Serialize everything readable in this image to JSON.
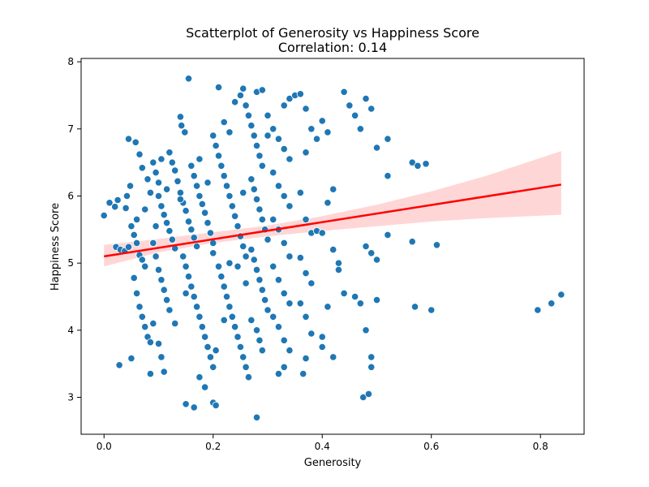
{
  "chart_data": {
    "type": "scatter",
    "title": "Scatterplot of Generosity vs Happiness Score",
    "subtitle": "Correlation: 0.14",
    "xlabel": "Generosity",
    "ylabel": "Happiness Score",
    "xlim": [
      -0.042,
      0.88
    ],
    "ylim": [
      2.45,
      8.05
    ],
    "xticks": [
      {
        "value": 0.0,
        "label": "0.0"
      },
      {
        "value": 0.2,
        "label": "0.2"
      },
      {
        "value": 0.4,
        "label": "0.4"
      },
      {
        "value": 0.6,
        "label": "0.6"
      },
      {
        "value": 0.8,
        "label": "0.8"
      }
    ],
    "yticks": [
      {
        "value": 3,
        "label": "3"
      },
      {
        "value": 4,
        "label": "4"
      },
      {
        "value": 5,
        "label": "5"
      },
      {
        "value": 6,
        "label": "6"
      },
      {
        "value": 7,
        "label": "7"
      },
      {
        "value": 8,
        "label": "8"
      }
    ],
    "grid": false,
    "colors": {
      "points": "#1f77b4",
      "point_edge": "#ffffff",
      "regression": "#ff0000",
      "ci": "#ffcccc"
    },
    "regression": {
      "x": [
        0.0,
        0.838
      ],
      "y": [
        5.1,
        6.17
      ]
    },
    "ci_band": {
      "x": [
        0.0,
        0.1,
        0.2,
        0.3,
        0.4,
        0.5,
        0.6,
        0.7,
        0.838
      ],
      "lower": [
        4.95,
        5.16,
        5.3,
        5.4,
        5.48,
        5.55,
        5.62,
        5.67,
        5.72
      ],
      "upper": [
        5.27,
        5.36,
        5.46,
        5.56,
        5.7,
        5.87,
        6.07,
        6.3,
        6.67
      ]
    },
    "points": [
      [
        0.0,
        5.71
      ],
      [
        0.01,
        5.9
      ],
      [
        0.02,
        5.84
      ],
      [
        0.025,
        5.94
      ],
      [
        0.022,
        5.24
      ],
      [
        0.03,
        5.2
      ],
      [
        0.038,
        5.18
      ],
      [
        0.045,
        5.24
      ],
      [
        0.028,
        3.48
      ],
      [
        0.05,
        3.58
      ],
      [
        0.04,
        5.82
      ],
      [
        0.042,
        6.0
      ],
      [
        0.048,
        6.15
      ],
      [
        0.05,
        5.55
      ],
      [
        0.055,
        5.42
      ],
      [
        0.06,
        5.3
      ],
      [
        0.065,
        5.12
      ],
      [
        0.07,
        5.05
      ],
      [
        0.075,
        4.95
      ],
      [
        0.045,
        6.85
      ],
      [
        0.058,
        6.8
      ],
      [
        0.065,
        6.62
      ],
      [
        0.07,
        6.42
      ],
      [
        0.08,
        6.25
      ],
      [
        0.085,
        6.05
      ],
      [
        0.055,
        4.78
      ],
      [
        0.06,
        4.55
      ],
      [
        0.065,
        4.35
      ],
      [
        0.07,
        4.2
      ],
      [
        0.075,
        4.05
      ],
      [
        0.08,
        3.9
      ],
      [
        0.085,
        3.82
      ],
      [
        0.09,
        6.5
      ],
      [
        0.095,
        6.35
      ],
      [
        0.1,
        6.2
      ],
      [
        0.1,
        6.0
      ],
      [
        0.105,
        5.85
      ],
      [
        0.11,
        5.72
      ],
      [
        0.115,
        5.6
      ],
      [
        0.12,
        5.48
      ],
      [
        0.125,
        5.35
      ],
      [
        0.13,
        5.22
      ],
      [
        0.09,
        5.3
      ],
      [
        0.095,
        5.1
      ],
      [
        0.1,
        4.9
      ],
      [
        0.105,
        4.75
      ],
      [
        0.11,
        4.6
      ],
      [
        0.115,
        4.45
      ],
      [
        0.12,
        4.3
      ],
      [
        0.09,
        4.1
      ],
      [
        0.1,
        3.8
      ],
      [
        0.105,
        3.6
      ],
      [
        0.085,
        3.35
      ],
      [
        0.11,
        3.38
      ],
      [
        0.12,
        6.65
      ],
      [
        0.125,
        6.5
      ],
      [
        0.13,
        6.38
      ],
      [
        0.135,
        6.22
      ],
      [
        0.14,
        6.05
      ],
      [
        0.145,
        5.9
      ],
      [
        0.15,
        5.78
      ],
      [
        0.155,
        5.62
      ],
      [
        0.16,
        5.5
      ],
      [
        0.165,
        5.38
      ],
      [
        0.17,
        5.25
      ],
      [
        0.14,
        7.18
      ],
      [
        0.142,
        7.05
      ],
      [
        0.148,
        6.95
      ],
      [
        0.155,
        7.75
      ],
      [
        0.16,
        6.45
      ],
      [
        0.165,
        6.3
      ],
      [
        0.17,
        6.15
      ],
      [
        0.175,
        6.0
      ],
      [
        0.18,
        5.88
      ],
      [
        0.185,
        5.75
      ],
      [
        0.19,
        5.6
      ],
      [
        0.195,
        5.45
      ],
      [
        0.2,
        5.3
      ],
      [
        0.145,
        5.1
      ],
      [
        0.15,
        4.95
      ],
      [
        0.155,
        4.8
      ],
      [
        0.16,
        4.65
      ],
      [
        0.165,
        4.5
      ],
      [
        0.17,
        4.35
      ],
      [
        0.175,
        4.2
      ],
      [
        0.18,
        4.05
      ],
      [
        0.185,
        3.9
      ],
      [
        0.19,
        3.75
      ],
      [
        0.195,
        3.6
      ],
      [
        0.2,
        3.45
      ],
      [
        0.15,
        2.9
      ],
      [
        0.165,
        2.85
      ],
      [
        0.2,
        2.92
      ],
      [
        0.205,
        2.88
      ],
      [
        0.175,
        3.3
      ],
      [
        0.185,
        3.15
      ],
      [
        0.21,
        7.62
      ],
      [
        0.2,
        6.9
      ],
      [
        0.205,
        6.75
      ],
      [
        0.21,
        6.6
      ],
      [
        0.215,
        6.45
      ],
      [
        0.22,
        6.3
      ],
      [
        0.225,
        6.15
      ],
      [
        0.23,
        6.0
      ],
      [
        0.235,
        5.85
      ],
      [
        0.24,
        5.7
      ],
      [
        0.245,
        5.55
      ],
      [
        0.25,
        5.4
      ],
      [
        0.255,
        5.25
      ],
      [
        0.26,
        5.1
      ],
      [
        0.21,
        4.95
      ],
      [
        0.215,
        4.8
      ],
      [
        0.22,
        4.65
      ],
      [
        0.225,
        4.5
      ],
      [
        0.23,
        4.35
      ],
      [
        0.235,
        4.2
      ],
      [
        0.24,
        4.05
      ],
      [
        0.245,
        3.9
      ],
      [
        0.25,
        3.75
      ],
      [
        0.255,
        3.6
      ],
      [
        0.26,
        3.45
      ],
      [
        0.265,
        3.3
      ],
      [
        0.22,
        7.1
      ],
      [
        0.23,
        6.95
      ],
      [
        0.24,
        7.4
      ],
      [
        0.25,
        7.5
      ],
      [
        0.255,
        7.6
      ],
      [
        0.26,
        7.35
      ],
      [
        0.265,
        7.2
      ],
      [
        0.27,
        7.05
      ],
      [
        0.275,
        6.9
      ],
      [
        0.28,
        6.75
      ],
      [
        0.285,
        6.6
      ],
      [
        0.29,
        6.45
      ],
      [
        0.27,
        6.25
      ],
      [
        0.275,
        6.1
      ],
      [
        0.28,
        5.95
      ],
      [
        0.285,
        5.8
      ],
      [
        0.29,
        5.65
      ],
      [
        0.295,
        5.5
      ],
      [
        0.3,
        5.35
      ],
      [
        0.27,
        5.2
      ],
      [
        0.275,
        5.05
      ],
      [
        0.28,
        4.9
      ],
      [
        0.285,
        4.75
      ],
      [
        0.29,
        4.6
      ],
      [
        0.295,
        4.45
      ],
      [
        0.3,
        4.3
      ],
      [
        0.27,
        4.15
      ],
      [
        0.28,
        4.0
      ],
      [
        0.285,
        3.85
      ],
      [
        0.29,
        3.7
      ],
      [
        0.28,
        2.7
      ],
      [
        0.28,
        7.55
      ],
      [
        0.29,
        7.58
      ],
      [
        0.3,
        7.2
      ],
      [
        0.31,
        7.0
      ],
      [
        0.32,
        6.85
      ],
      [
        0.33,
        6.7
      ],
      [
        0.34,
        6.55
      ],
      [
        0.31,
        6.35
      ],
      [
        0.32,
        6.15
      ],
      [
        0.33,
        6.0
      ],
      [
        0.34,
        5.85
      ],
      [
        0.31,
        5.65
      ],
      [
        0.32,
        5.5
      ],
      [
        0.33,
        5.3
      ],
      [
        0.34,
        5.1
      ],
      [
        0.31,
        4.95
      ],
      [
        0.32,
        4.75
      ],
      [
        0.33,
        4.55
      ],
      [
        0.34,
        4.4
      ],
      [
        0.31,
        4.2
      ],
      [
        0.32,
        4.05
      ],
      [
        0.33,
        3.85
      ],
      [
        0.34,
        3.7
      ],
      [
        0.32,
        3.35
      ],
      [
        0.33,
        3.45
      ],
      [
        0.33,
        7.35
      ],
      [
        0.34,
        7.45
      ],
      [
        0.35,
        7.5
      ],
      [
        0.36,
        7.52
      ],
      [
        0.37,
        7.3
      ],
      [
        0.38,
        7.0
      ],
      [
        0.39,
        6.85
      ],
      [
        0.37,
        6.65
      ],
      [
        0.36,
        6.05
      ],
      [
        0.37,
        5.65
      ],
      [
        0.38,
        5.45
      ],
      [
        0.39,
        5.48
      ],
      [
        0.36,
        5.08
      ],
      [
        0.37,
        4.85
      ],
      [
        0.38,
        4.7
      ],
      [
        0.36,
        4.4
      ],
      [
        0.37,
        4.2
      ],
      [
        0.38,
        3.95
      ],
      [
        0.365,
        3.35
      ],
      [
        0.37,
        3.58
      ],
      [
        0.4,
        7.12
      ],
      [
        0.41,
        6.95
      ],
      [
        0.42,
        6.1
      ],
      [
        0.41,
        5.9
      ],
      [
        0.4,
        5.45
      ],
      [
        0.42,
        5.2
      ],
      [
        0.43,
        5.0
      ],
      [
        0.43,
        4.9
      ],
      [
        0.41,
        4.35
      ],
      [
        0.4,
        3.9
      ],
      [
        0.4,
        3.75
      ],
      [
        0.42,
        3.6
      ],
      [
        0.44,
        7.55
      ],
      [
        0.45,
        7.35
      ],
      [
        0.46,
        7.2
      ],
      [
        0.47,
        7.0
      ],
      [
        0.48,
        7.45
      ],
      [
        0.49,
        7.3
      ],
      [
        0.5,
        6.72
      ],
      [
        0.44,
        4.55
      ],
      [
        0.46,
        4.5
      ],
      [
        0.47,
        4.4
      ],
      [
        0.48,
        5.25
      ],
      [
        0.49,
        5.15
      ],
      [
        0.5,
        5.05
      ],
      [
        0.52,
        5.42
      ],
      [
        0.52,
        6.3
      ],
      [
        0.52,
        6.85
      ],
      [
        0.475,
        3.0
      ],
      [
        0.485,
        3.05
      ],
      [
        0.48,
        4.0
      ],
      [
        0.49,
        3.6
      ],
      [
        0.49,
        3.45
      ],
      [
        0.5,
        4.45
      ],
      [
        0.565,
        6.5
      ],
      [
        0.575,
        6.45
      ],
      [
        0.59,
        6.48
      ],
      [
        0.565,
        5.32
      ],
      [
        0.61,
        5.27
      ],
      [
        0.57,
        4.35
      ],
      [
        0.6,
        4.3
      ],
      [
        0.795,
        4.3
      ],
      [
        0.82,
        4.4
      ],
      [
        0.838,
        4.53
      ],
      [
        0.23,
        5.0
      ],
      [
        0.19,
        6.2
      ],
      [
        0.14,
        5.95
      ],
      [
        0.06,
        5.65
      ],
      [
        0.075,
        5.8
      ],
      [
        0.175,
        6.55
      ],
      [
        0.2,
        5.15
      ],
      [
        0.245,
        4.95
      ],
      [
        0.26,
        4.7
      ],
      [
        0.115,
        6.1
      ],
      [
        0.13,
        4.1
      ],
      [
        0.205,
        3.7
      ],
      [
        0.15,
        4.55
      ],
      [
        0.095,
        5.55
      ],
      [
        0.255,
        6.05
      ],
      [
        0.22,
        4.15
      ],
      [
        0.105,
        6.55
      ],
      [
        0.3,
        6.9
      ]
    ]
  }
}
